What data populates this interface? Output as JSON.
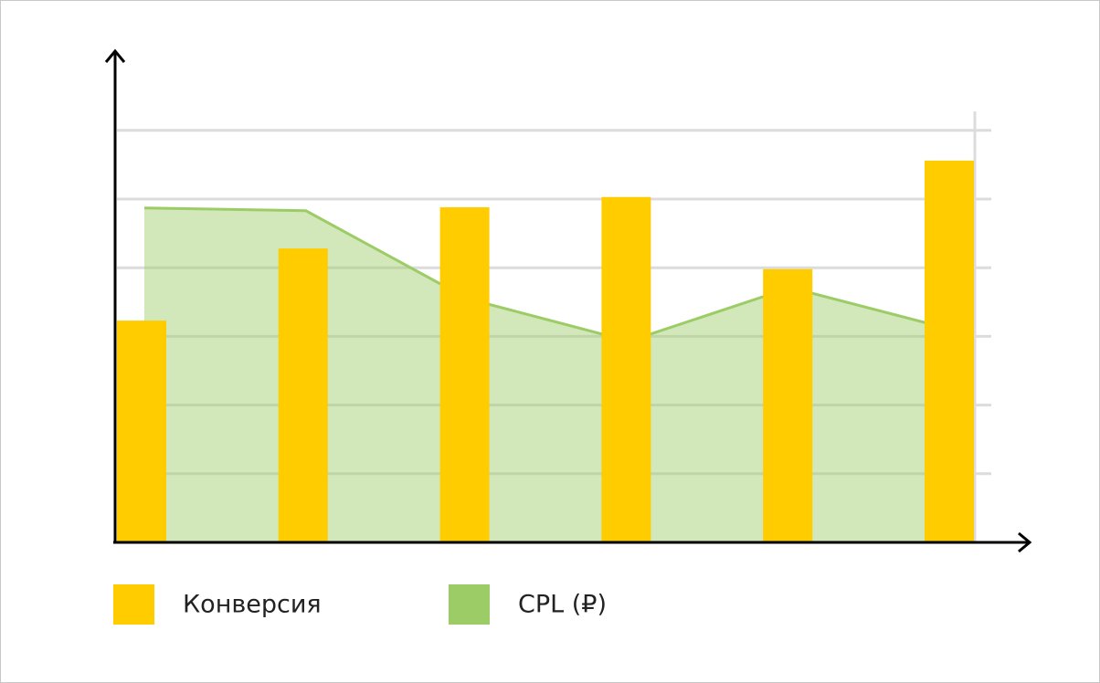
{
  "chart_data": {
    "type": "bar",
    "categories": [
      null,
      null,
      null,
      null,
      null,
      null
    ],
    "series": [
      {
        "name": "Конверсия",
        "type": "bar",
        "color": "#ffcc00",
        "values": [
          3.23,
          4.28,
          4.88,
          5.03,
          3.98,
          5.56
        ]
      },
      {
        "name": "CPL (₽)",
        "type": "area",
        "color": "#9ccc65",
        "values": [
          4.87,
          4.83,
          3.55,
          2.93,
          3.71,
          3.1
        ]
      }
    ],
    "ylim": [
      0,
      7
    ],
    "yticks": [
      1,
      2,
      3,
      4,
      5,
      6
    ],
    "grid": true
  }
}
